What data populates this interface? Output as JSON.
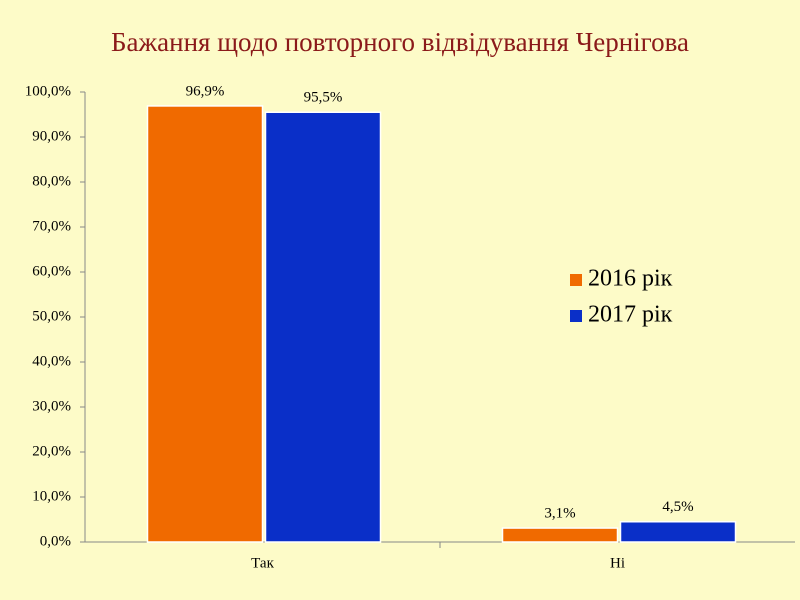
{
  "chart_data": {
    "type": "bar",
    "title": "Бажання щодо повторного відвідування Чернігова",
    "categories": [
      "Так",
      "Ні"
    ],
    "series": [
      {
        "name": "2016 рік",
        "color": "#f06a00",
        "values": [
          96.9,
          3.1
        ],
        "value_labels": [
          "96,9%",
          "3,1%"
        ]
      },
      {
        "name": "2017 рік",
        "color": "#0a2fc8",
        "values": [
          95.5,
          4.5
        ],
        "value_labels": [
          "95,5%",
          "4,5%"
        ]
      }
    ],
    "ylim": [
      0,
      100
    ],
    "yticks": [
      {
        "value": 0,
        "label": "0,0%"
      },
      {
        "value": 10,
        "label": "10,0%"
      },
      {
        "value": 20,
        "label": "20,0%"
      },
      {
        "value": 30,
        "label": "30,0%"
      },
      {
        "value": 40,
        "label": "40,0%"
      },
      {
        "value": 50,
        "label": "50,0%"
      },
      {
        "value": 60,
        "label": "60,0%"
      },
      {
        "value": 70,
        "label": "70,0%"
      },
      {
        "value": 80,
        "label": "80,0%"
      },
      {
        "value": 90,
        "label": "90,0%"
      },
      {
        "value": 100,
        "label": "100,0%"
      }
    ],
    "legend": "right"
  }
}
